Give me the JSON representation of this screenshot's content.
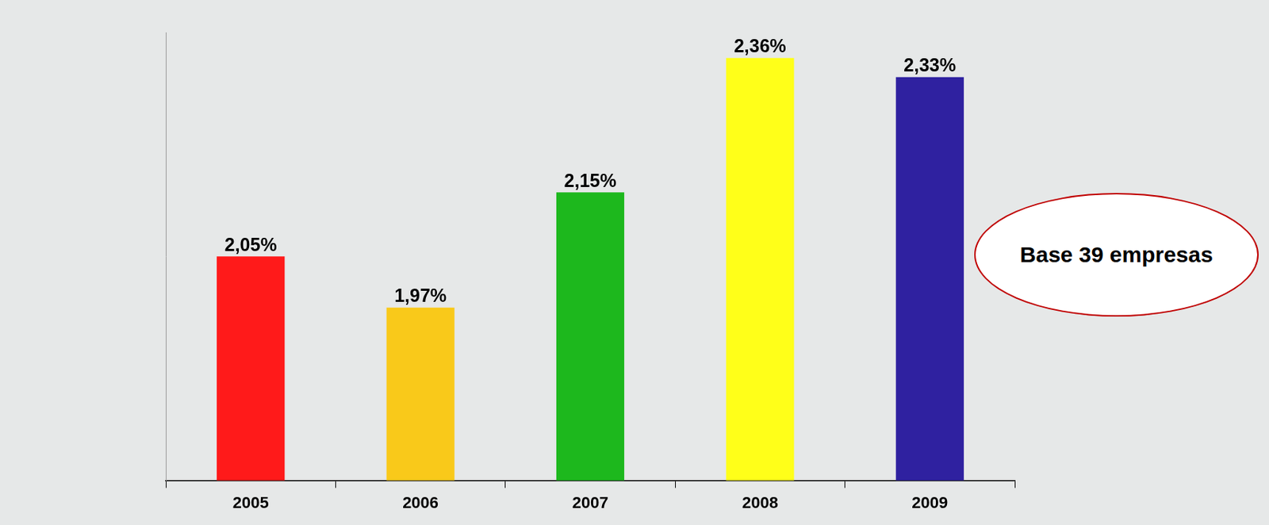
{
  "chart_data": {
    "type": "bar",
    "categories": [
      "2005",
      "2006",
      "2007",
      "2008",
      "2009"
    ],
    "values": [
      2.05,
      1.97,
      2.15,
      2.36,
      2.33
    ],
    "value_labels": [
      "2,05%",
      "1,97%",
      "2,15%",
      "2,36%",
      "2,33%"
    ],
    "colors": [
      "#ff1a1a",
      "#f9c91a",
      "#1db81d",
      "#ffff19",
      "#2f21a0"
    ],
    "ylim": [
      1.7,
      2.4
    ],
    "data_labels": true,
    "tick_labels": "x",
    "grid": false,
    "annotation": "Base 39 empresas"
  }
}
